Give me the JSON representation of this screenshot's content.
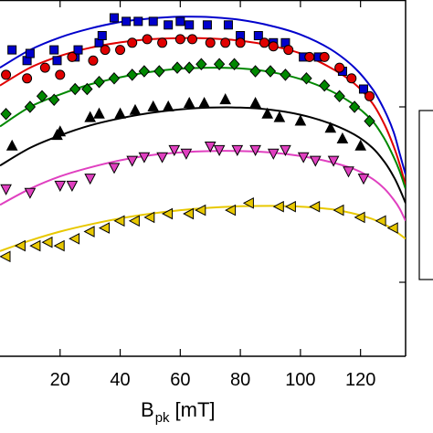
{
  "chart_data": {
    "type": "scatter",
    "title": "",
    "xlabel": "B",
    "xlabel_subscript": "pk",
    "xlabel_unit": "[mT]",
    "ylabel": "",
    "xlim": [
      0,
      135
    ],
    "ylim": [
      0,
      100
    ],
    "xticks": [
      20,
      40,
      60,
      80,
      100,
      120
    ],
    "xtick_labels": [
      "20",
      "40",
      "60",
      "80",
      "100",
      "120"
    ],
    "grid": false,
    "legend": "right (cropped)",
    "series": [
      {
        "color": "#0000cc",
        "marker": "square",
        "points": [
          [
            4,
            86
          ],
          [
            9,
            83
          ],
          [
            10,
            85
          ],
          [
            18,
            86
          ],
          [
            19,
            83
          ],
          [
            25,
            84
          ],
          [
            26,
            86
          ],
          [
            33,
            88
          ],
          [
            34,
            90
          ],
          [
            38,
            95
          ],
          [
            42,
            94
          ],
          [
            46,
            94
          ],
          [
            51,
            94
          ],
          [
            56,
            93
          ],
          [
            60,
            94
          ],
          [
            63,
            93
          ],
          [
            69,
            93
          ],
          [
            76,
            93
          ],
          [
            80,
            90
          ],
          [
            86,
            90
          ],
          [
            91,
            88
          ],
          [
            95,
            88
          ],
          [
            101,
            84
          ],
          [
            106,
            84
          ],
          [
            114,
            80
          ],
          [
            121,
            75
          ]
        ],
        "fit": [
          [
            0,
            81
          ],
          [
            10,
            86
          ],
          [
            20,
            89.5
          ],
          [
            30,
            92
          ],
          [
            40,
            93.8
          ],
          [
            50,
            94.8
          ],
          [
            60,
            95.3
          ],
          [
            70,
            95.2
          ],
          [
            80,
            94.4
          ],
          [
            90,
            92.8
          ],
          [
            100,
            90.3
          ],
          [
            110,
            86.2
          ],
          [
            118,
            81
          ],
          [
            124,
            75
          ],
          [
            128,
            69
          ],
          [
            131,
            63
          ],
          [
            133,
            57
          ],
          [
            135,
            51
          ]
        ]
      },
      {
        "color": "#e00000",
        "marker": "circle",
        "points": [
          [
            2,
            79
          ],
          [
            9,
            78
          ],
          [
            15,
            81
          ],
          [
            20,
            79
          ],
          [
            24,
            84
          ],
          [
            31,
            83
          ],
          [
            35,
            86
          ],
          [
            40,
            86
          ],
          [
            44,
            88
          ],
          [
            49,
            89
          ],
          [
            54,
            88
          ],
          [
            60,
            89
          ],
          [
            64,
            89
          ],
          [
            70,
            88
          ],
          [
            75,
            88
          ],
          [
            80,
            88
          ],
          [
            88,
            88
          ],
          [
            91,
            87
          ],
          [
            96,
            86
          ],
          [
            103,
            84
          ],
          [
            108,
            84
          ],
          [
            113,
            81
          ],
          [
            117,
            78
          ],
          [
            123,
            73
          ]
        ],
        "fit": [
          [
            0,
            76
          ],
          [
            10,
            81
          ],
          [
            20,
            84.3
          ],
          [
            30,
            86.6
          ],
          [
            40,
            88.1
          ],
          [
            50,
            89
          ],
          [
            60,
            89.3
          ],
          [
            70,
            89.2
          ],
          [
            80,
            88.6
          ],
          [
            90,
            87.2
          ],
          [
            100,
            85
          ],
          [
            110,
            81
          ],
          [
            118,
            76.5
          ],
          [
            124,
            71
          ],
          [
            128,
            65
          ],
          [
            131,
            59
          ],
          [
            133,
            54
          ],
          [
            135,
            48
          ]
        ]
      },
      {
        "color": "#008800",
        "marker": "diamond",
        "points": [
          [
            2,
            68
          ],
          [
            10,
            70
          ],
          [
            14,
            73
          ],
          [
            18,
            72
          ],
          [
            25,
            75
          ],
          [
            29,
            75
          ],
          [
            33,
            77
          ],
          [
            38,
            78
          ],
          [
            44,
            79
          ],
          [
            48,
            80
          ],
          [
            53,
            80
          ],
          [
            59,
            81
          ],
          [
            63,
            81
          ],
          [
            67,
            82
          ],
          [
            73,
            82
          ],
          [
            78,
            82
          ],
          [
            85,
            80
          ],
          [
            90,
            80
          ],
          [
            95,
            79
          ],
          [
            102,
            78
          ],
          [
            108,
            76
          ],
          [
            113,
            73
          ],
          [
            118,
            70
          ],
          [
            123,
            66
          ]
        ],
        "fit": [
          [
            0,
            64.5
          ],
          [
            10,
            70
          ],
          [
            20,
            73.5
          ],
          [
            30,
            76.3
          ],
          [
            40,
            78.3
          ],
          [
            50,
            79.8
          ],
          [
            60,
            80.7
          ],
          [
            70,
            81
          ],
          [
            80,
            80.8
          ],
          [
            90,
            79.8
          ],
          [
            100,
            77.8
          ],
          [
            110,
            74.5
          ],
          [
            118,
            70.5
          ],
          [
            124,
            66
          ],
          [
            128,
            61
          ],
          [
            131,
            56
          ],
          [
            133,
            52
          ],
          [
            135,
            47
          ]
        ]
      },
      {
        "color": "#000000",
        "marker": "triangle-up",
        "points": [
          [
            4,
            59
          ],
          [
            19,
            62
          ],
          [
            20,
            63
          ],
          [
            30,
            67
          ],
          [
            33,
            68
          ],
          [
            40,
            68
          ],
          [
            45,
            69
          ],
          [
            51,
            70
          ],
          [
            56,
            70
          ],
          [
            63,
            71
          ],
          [
            68,
            71
          ],
          [
            75,
            72
          ],
          [
            85,
            71
          ],
          [
            89,
            68
          ],
          [
            93,
            67
          ],
          [
            100,
            66
          ],
          [
            110,
            64
          ],
          [
            114,
            61
          ],
          [
            120,
            59
          ]
        ],
        "fit": [
          [
            0,
            53.5
          ],
          [
            10,
            58.5
          ],
          [
            20,
            62
          ],
          [
            30,
            64.8
          ],
          [
            40,
            66.8
          ],
          [
            50,
            68.3
          ],
          [
            60,
            69.3
          ],
          [
            70,
            69.8
          ],
          [
            80,
            69.8
          ],
          [
            90,
            69.2
          ],
          [
            100,
            67.8
          ],
          [
            110,
            65.3
          ],
          [
            118,
            62.2
          ],
          [
            124,
            58.5
          ],
          [
            128,
            54.5
          ],
          [
            131,
            50.5
          ],
          [
            133,
            47
          ],
          [
            135,
            43
          ]
        ]
      },
      {
        "color": "#e040c0",
        "marker": "triangle-down",
        "points": [
          [
            2,
            47
          ],
          [
            10,
            46
          ],
          [
            20,
            48
          ],
          [
            24,
            48
          ],
          [
            30,
            50
          ],
          [
            38,
            53
          ],
          [
            44,
            55
          ],
          [
            48,
            56
          ],
          [
            54,
            56
          ],
          [
            58,
            58
          ],
          [
            62,
            57
          ],
          [
            70,
            59
          ],
          [
            73,
            58
          ],
          [
            79,
            58
          ],
          [
            85,
            58
          ],
          [
            91,
            57
          ],
          [
            95,
            58
          ],
          [
            101,
            56
          ],
          [
            105,
            55
          ],
          [
            111,
            55
          ],
          [
            116,
            52
          ],
          [
            121,
            50
          ]
        ],
        "fit": [
          [
            0,
            42.5
          ],
          [
            10,
            47
          ],
          [
            20,
            50.5
          ],
          [
            30,
            53
          ],
          [
            40,
            55
          ],
          [
            50,
            56.4
          ],
          [
            60,
            57.2
          ],
          [
            70,
            57.6
          ],
          [
            80,
            57.6
          ],
          [
            90,
            57.2
          ],
          [
            100,
            56.2
          ],
          [
            110,
            54.5
          ],
          [
            118,
            52.5
          ],
          [
            124,
            49.8
          ],
          [
            128,
            47
          ],
          [
            131,
            44
          ],
          [
            133,
            41.5
          ],
          [
            135,
            38
          ]
        ]
      },
      {
        "color": "#e8c800",
        "marker": "triangle-left",
        "points": [
          [
            2,
            28
          ],
          [
            7,
            31
          ],
          [
            12,
            31
          ],
          [
            16,
            32
          ],
          [
            20,
            31
          ],
          [
            25,
            33
          ],
          [
            30,
            35
          ],
          [
            35,
            36
          ],
          [
            40,
            38
          ],
          [
            45,
            38
          ],
          [
            50,
            39
          ],
          [
            56,
            40
          ],
          [
            63,
            40
          ],
          [
            67,
            41
          ],
          [
            77,
            41
          ],
          [
            83,
            43
          ],
          [
            93,
            42
          ],
          [
            97,
            42
          ],
          [
            105,
            42
          ],
          [
            113,
            41
          ],
          [
            120,
            39
          ],
          [
            127,
            38
          ],
          [
            131,
            36
          ]
        ],
        "fit": [
          [
            0,
            29.5
          ],
          [
            10,
            32.5
          ],
          [
            20,
            35
          ],
          [
            30,
            37
          ],
          [
            40,
            38.7
          ],
          [
            50,
            40
          ],
          [
            60,
            41
          ],
          [
            70,
            41.7
          ],
          [
            80,
            42.1
          ],
          [
            90,
            42.2
          ],
          [
            100,
            42
          ],
          [
            110,
            41.3
          ],
          [
            118,
            40
          ],
          [
            124,
            38.5
          ],
          [
            128,
            37
          ],
          [
            131,
            35.5
          ],
          [
            135,
            33
          ]
        ]
      }
    ]
  }
}
